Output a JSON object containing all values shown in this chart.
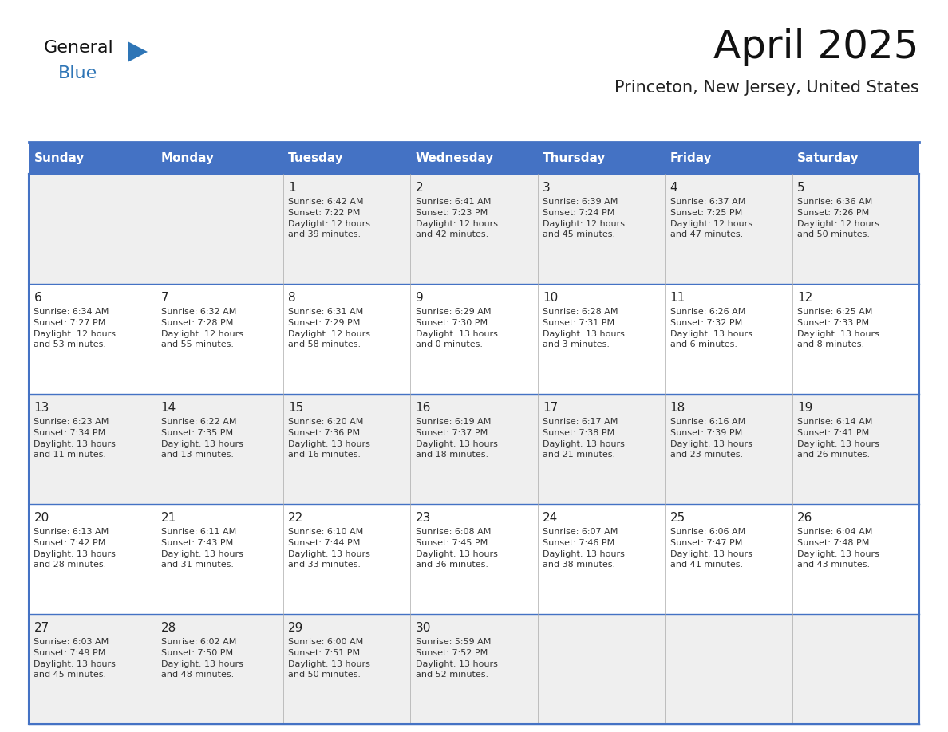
{
  "title": "April 2025",
  "subtitle": "Princeton, New Jersey, United States",
  "days_of_week": [
    "Sunday",
    "Monday",
    "Tuesday",
    "Wednesday",
    "Thursday",
    "Friday",
    "Saturday"
  ],
  "header_bg": "#4472C4",
  "header_text": "#FFFFFF",
  "row_bg_odd": "#EFEFEF",
  "row_bg_even": "#FFFFFF",
  "border_color": "#4472C4",
  "cell_border_color": "#AAAAAA",
  "day_number_color": "#222222",
  "text_color": "#333333",
  "title_color": "#111111",
  "subtitle_color": "#222222",
  "calendar": [
    [
      {
        "day": null,
        "text": ""
      },
      {
        "day": null,
        "text": ""
      },
      {
        "day": 1,
        "text": "Sunrise: 6:42 AM\nSunset: 7:22 PM\nDaylight: 12 hours\nand 39 minutes."
      },
      {
        "day": 2,
        "text": "Sunrise: 6:41 AM\nSunset: 7:23 PM\nDaylight: 12 hours\nand 42 minutes."
      },
      {
        "day": 3,
        "text": "Sunrise: 6:39 AM\nSunset: 7:24 PM\nDaylight: 12 hours\nand 45 minutes."
      },
      {
        "day": 4,
        "text": "Sunrise: 6:37 AM\nSunset: 7:25 PM\nDaylight: 12 hours\nand 47 minutes."
      },
      {
        "day": 5,
        "text": "Sunrise: 6:36 AM\nSunset: 7:26 PM\nDaylight: 12 hours\nand 50 minutes."
      }
    ],
    [
      {
        "day": 6,
        "text": "Sunrise: 6:34 AM\nSunset: 7:27 PM\nDaylight: 12 hours\nand 53 minutes."
      },
      {
        "day": 7,
        "text": "Sunrise: 6:32 AM\nSunset: 7:28 PM\nDaylight: 12 hours\nand 55 minutes."
      },
      {
        "day": 8,
        "text": "Sunrise: 6:31 AM\nSunset: 7:29 PM\nDaylight: 12 hours\nand 58 minutes."
      },
      {
        "day": 9,
        "text": "Sunrise: 6:29 AM\nSunset: 7:30 PM\nDaylight: 13 hours\nand 0 minutes."
      },
      {
        "day": 10,
        "text": "Sunrise: 6:28 AM\nSunset: 7:31 PM\nDaylight: 13 hours\nand 3 minutes."
      },
      {
        "day": 11,
        "text": "Sunrise: 6:26 AM\nSunset: 7:32 PM\nDaylight: 13 hours\nand 6 minutes."
      },
      {
        "day": 12,
        "text": "Sunrise: 6:25 AM\nSunset: 7:33 PM\nDaylight: 13 hours\nand 8 minutes."
      }
    ],
    [
      {
        "day": 13,
        "text": "Sunrise: 6:23 AM\nSunset: 7:34 PM\nDaylight: 13 hours\nand 11 minutes."
      },
      {
        "day": 14,
        "text": "Sunrise: 6:22 AM\nSunset: 7:35 PM\nDaylight: 13 hours\nand 13 minutes."
      },
      {
        "day": 15,
        "text": "Sunrise: 6:20 AM\nSunset: 7:36 PM\nDaylight: 13 hours\nand 16 minutes."
      },
      {
        "day": 16,
        "text": "Sunrise: 6:19 AM\nSunset: 7:37 PM\nDaylight: 13 hours\nand 18 minutes."
      },
      {
        "day": 17,
        "text": "Sunrise: 6:17 AM\nSunset: 7:38 PM\nDaylight: 13 hours\nand 21 minutes."
      },
      {
        "day": 18,
        "text": "Sunrise: 6:16 AM\nSunset: 7:39 PM\nDaylight: 13 hours\nand 23 minutes."
      },
      {
        "day": 19,
        "text": "Sunrise: 6:14 AM\nSunset: 7:41 PM\nDaylight: 13 hours\nand 26 minutes."
      }
    ],
    [
      {
        "day": 20,
        "text": "Sunrise: 6:13 AM\nSunset: 7:42 PM\nDaylight: 13 hours\nand 28 minutes."
      },
      {
        "day": 21,
        "text": "Sunrise: 6:11 AM\nSunset: 7:43 PM\nDaylight: 13 hours\nand 31 minutes."
      },
      {
        "day": 22,
        "text": "Sunrise: 6:10 AM\nSunset: 7:44 PM\nDaylight: 13 hours\nand 33 minutes."
      },
      {
        "day": 23,
        "text": "Sunrise: 6:08 AM\nSunset: 7:45 PM\nDaylight: 13 hours\nand 36 minutes."
      },
      {
        "day": 24,
        "text": "Sunrise: 6:07 AM\nSunset: 7:46 PM\nDaylight: 13 hours\nand 38 minutes."
      },
      {
        "day": 25,
        "text": "Sunrise: 6:06 AM\nSunset: 7:47 PM\nDaylight: 13 hours\nand 41 minutes."
      },
      {
        "day": 26,
        "text": "Sunrise: 6:04 AM\nSunset: 7:48 PM\nDaylight: 13 hours\nand 43 minutes."
      }
    ],
    [
      {
        "day": 27,
        "text": "Sunrise: 6:03 AM\nSunset: 7:49 PM\nDaylight: 13 hours\nand 45 minutes."
      },
      {
        "day": 28,
        "text": "Sunrise: 6:02 AM\nSunset: 7:50 PM\nDaylight: 13 hours\nand 48 minutes."
      },
      {
        "day": 29,
        "text": "Sunrise: 6:00 AM\nSunset: 7:51 PM\nDaylight: 13 hours\nand 50 minutes."
      },
      {
        "day": 30,
        "text": "Sunrise: 5:59 AM\nSunset: 7:52 PM\nDaylight: 13 hours\nand 52 minutes."
      },
      {
        "day": null,
        "text": ""
      },
      {
        "day": null,
        "text": ""
      },
      {
        "day": null,
        "text": ""
      }
    ]
  ],
  "logo_text1": "General",
  "logo_text2": "Blue",
  "logo_text1_color": "#111111",
  "logo_text2_color": "#2E75B6",
  "logo_triangle_color": "#2E75B6",
  "fig_width": 11.88,
  "fig_height": 9.18,
  "dpi": 100
}
